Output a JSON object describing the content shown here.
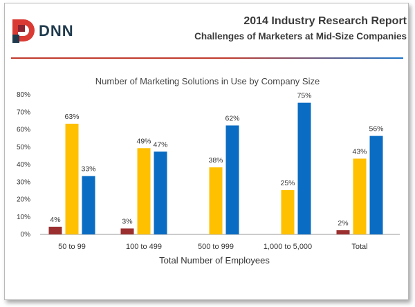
{
  "header": {
    "report_title": "2014 Industry Research Report",
    "report_subtitle": "Challenges of Marketers at Mid-Size Companies",
    "brand": "DNN"
  },
  "colors": {
    "series1": "#9b2f2f",
    "series2": "#ffc000",
    "series3": "#0a6cc2",
    "rule_left": "#c0392b",
    "rule_right": "#1a73c9"
  },
  "chart_data": {
    "type": "bar",
    "title": "Number of Marketing Solutions in Use by Company Size",
    "xlabel": "Total Number of Employees",
    "ylabel": "",
    "ylim": [
      0,
      80
    ],
    "yticks": [
      "0%",
      "10%",
      "20%",
      "30%",
      "40%",
      "50%",
      "60%",
      "70%",
      "80%"
    ],
    "categories": [
      "50 to 99",
      "100 to 499",
      "500 to 999",
      "1,000 to 5,000",
      "Total"
    ],
    "grid": false,
    "legend": "none",
    "series": [
      {
        "values": [
          4,
          3,
          null,
          null,
          2
        ],
        "labels": [
          "4%",
          "3%",
          "",
          "",
          "2%"
        ]
      },
      {
        "values": [
          63,
          49,
          38,
          25,
          43
        ],
        "labels": [
          "63%",
          "49%",
          "38%",
          "25%",
          "43%"
        ]
      },
      {
        "values": [
          33,
          47,
          62,
          75,
          56
        ],
        "labels": [
          "33%",
          "47%",
          "62%",
          "75%",
          "56%"
        ]
      }
    ]
  }
}
